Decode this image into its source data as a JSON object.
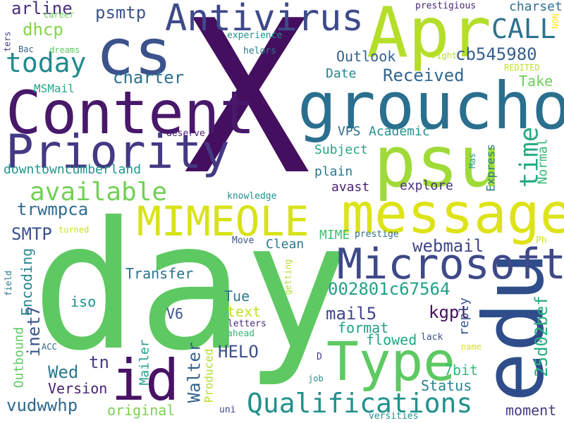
{
  "words": [
    {
      "text": "X",
      "color": "#440f5f",
      "vertical": false
    },
    {
      "text": "day",
      "color": "#5ec962",
      "vertical": false
    },
    {
      "text": "Apr",
      "color": "#b5de2b",
      "vertical": false
    },
    {
      "text": "edu",
      "color": "#2e4d8a",
      "vertical": true
    },
    {
      "text": "groucho",
      "color": "#2a6f8e",
      "vertical": false
    },
    {
      "text": "Content",
      "color": "#48186a",
      "vertical": false
    },
    {
      "text": "cs",
      "color": "#3b528b",
      "vertical": false
    },
    {
      "text": "psu",
      "color": "#a0da39",
      "vertical": false
    },
    {
      "text": "message",
      "color": "#dde318",
      "vertical": false
    },
    {
      "text": "Priority",
      "color": "#443983",
      "vertical": false
    },
    {
      "text": "Antivirus",
      "color": "#3e4a89",
      "vertical": false
    },
    {
      "text": "Microsoft",
      "color": "#3e4989",
      "vertical": false
    },
    {
      "text": "Type",
      "color": "#5ec962",
      "vertical": false
    },
    {
      "text": "id",
      "color": "#471365",
      "vertical": false
    },
    {
      "text": "MIMEOLE",
      "color": "#d8e219",
      "vertical": false
    },
    {
      "text": "Qualifications",
      "color": "#21918c",
      "vertical": false
    },
    {
      "text": "today",
      "color": "#23898e",
      "vertical": false
    },
    {
      "text": "available",
      "color": "#73d056",
      "vertical": false
    },
    {
      "text": "CALL",
      "color": "#2c728e",
      "vertical": false
    },
    {
      "text": "cb545980",
      "color": "#355f8d",
      "vertical": false
    },
    {
      "text": "charter",
      "color": "#2d708e",
      "vertical": false
    },
    {
      "text": "psmtp",
      "color": "#3a548c",
      "vertical": false
    },
    {
      "text": "time",
      "color": "#25ac82",
      "vertical": true
    },
    {
      "text": "arline",
      "color": "#472f7d",
      "vertical": false
    },
    {
      "text": "dhcp",
      "color": "#84d44b",
      "vertical": false
    },
    {
      "text": "trwmpca",
      "color": "#2f6b8e",
      "vertical": false
    },
    {
      "text": "downtowncumberland",
      "color": "#1f948c",
      "vertical": false
    },
    {
      "text": "Received",
      "color": "#32658e",
      "vertical": false
    },
    {
      "text": "Outlook",
      "color": "#34618d",
      "vertical": false
    },
    {
      "text": "Date",
      "color": "#24868e",
      "vertical": false
    },
    {
      "text": "Take",
      "color": "#6ccd5a",
      "vertical": false
    },
    {
      "text": "SMTP",
      "color": "#3a538b",
      "vertical": false
    },
    {
      "text": "webmail",
      "color": "#3f4788",
      "vertical": false
    },
    {
      "text": "002801c67564",
      "color": "#1fa187",
      "vertical": false
    },
    {
      "text": "25d02bef",
      "color": "#29af7f",
      "vertical": true
    },
    {
      "text": "kgpt",
      "color": "#470e61",
      "vertical": false
    },
    {
      "text": "mail5",
      "color": "#414487",
      "vertical": false
    },
    {
      "text": "Transfer",
      "color": "#2c738e",
      "vertical": false
    },
    {
      "text": "Encoding",
      "color": "#25858e",
      "vertical": true
    },
    {
      "text": "inet7",
      "color": "#39568c",
      "vertical": true
    },
    {
      "text": "Wed",
      "color": "#2a788e",
      "vertical": false
    },
    {
      "text": "tn",
      "color": "#433d84",
      "vertical": false
    },
    {
      "text": "Walter",
      "color": "#33638d",
      "vertical": true
    },
    {
      "text": "HELO",
      "color": "#3d4e8a",
      "vertical": false
    },
    {
      "text": "vudwwhp",
      "color": "#31688e",
      "vertical": false
    },
    {
      "text": "Version",
      "color": "#482374",
      "vertical": false
    },
    {
      "text": "Status",
      "color": "#26828e",
      "vertical": false
    },
    {
      "text": "7bit",
      "color": "#35b779",
      "vertical": false
    },
    {
      "text": "moment",
      "color": "#443b84",
      "vertical": false
    },
    {
      "text": "original",
      "color": "#7ad151",
      "vertical": false
    },
    {
      "text": "Produced",
      "color": "#b5de2b",
      "vertical": true
    },
    {
      "text": "Mailer",
      "color": "#1f9e89",
      "vertical": true
    },
    {
      "text": "Outbound",
      "color": "#5ec962",
      "vertical": true
    },
    {
      "text": "iso",
      "color": "#21918c",
      "vertical": false
    },
    {
      "text": "V6",
      "color": "#3b528b",
      "vertical": false
    },
    {
      "text": "Tue",
      "color": "#2a788e",
      "vertical": false
    },
    {
      "text": "text",
      "color": "#c2df23",
      "vertical": false
    },
    {
      "text": "format",
      "color": "#1fa088",
      "vertical": false
    },
    {
      "text": "flowed",
      "color": "#22a884",
      "vertical": false
    },
    {
      "text": "reply",
      "color": "#3a548c",
      "vertical": true
    },
    {
      "text": "Express",
      "color": "#2a788e",
      "vertical": true
    },
    {
      "text": "Normal",
      "color": "#35b779",
      "vertical": true
    },
    {
      "text": "Academic",
      "color": "#20928c",
      "vertical": false
    },
    {
      "text": "VPS",
      "color": "#2e6e8e",
      "vertical": false
    },
    {
      "text": "Subject",
      "color": "#22a884",
      "vertical": false
    },
    {
      "text": "plain",
      "color": "#29788e",
      "vertical": false
    },
    {
      "text": "avast",
      "color": "#481f70",
      "vertical": false
    },
    {
      "text": "explore",
      "color": "#46317e",
      "vertical": false
    },
    {
      "text": "MIME",
      "color": "#40bd72",
      "vertical": false
    },
    {
      "text": "Clean",
      "color": "#2a788e",
      "vertical": false
    },
    {
      "text": "MSMail",
      "color": "#22a884",
      "vertical": false
    },
    {
      "text": "charset",
      "color": "#2d708e",
      "vertical": false
    },
    {
      "text": "prestigious",
      "color": "#482677",
      "vertical": false
    },
    {
      "text": "experience",
      "color": "#21918c",
      "vertical": false
    },
    {
      "text": "helors",
      "color": "#2a788e",
      "vertical": false
    },
    {
      "text": "career",
      "color": "#6ece58",
      "vertical": false
    },
    {
      "text": "dreams",
      "color": "#5ec962",
      "vertical": false
    },
    {
      "text": "Bac",
      "color": "#355f8d",
      "vertical": false
    },
    {
      "text": "ters",
      "color": "#414487",
      "vertical": true
    },
    {
      "text": "NON",
      "color": "#fde725",
      "vertical": true
    },
    {
      "text": "right",
      "color": "#b5de2b",
      "vertical": false
    },
    {
      "text": "REDITED",
      "color": "#bddf26",
      "vertical": false
    },
    {
      "text": "deserve",
      "color": "#482173",
      "vertical": false
    },
    {
      "text": "Mas",
      "color": "#1f9e89",
      "vertical": true
    },
    {
      "text": "knowledge",
      "color": "#21918c",
      "vertical": false
    },
    {
      "text": "turned",
      "color": "#c8e020",
      "vertical": false
    },
    {
      "text": "prestige",
      "color": "#2d708e",
      "vertical": false
    },
    {
      "text": "Move",
      "color": "#3b528b",
      "vertical": false
    },
    {
      "text": "Ph",
      "color": "#d0e11c",
      "vertical": false
    },
    {
      "text": "field",
      "color": "#2a788e",
      "vertical": true
    },
    {
      "text": "getting",
      "color": "#b5de2b",
      "vertical": true
    },
    {
      "text": "letters",
      "color": "#472c7a",
      "vertical": false
    },
    {
      "text": "ahead",
      "color": "#35b779",
      "vertical": false
    },
    {
      "text": "lack",
      "color": "#3b528b",
      "vertical": false
    },
    {
      "text": "name",
      "color": "#d8e219",
      "vertical": false
    },
    {
      "text": "ACC",
      "color": "#31688e",
      "vertical": false
    },
    {
      "text": "D",
      "color": "#443a83",
      "vertical": false
    },
    {
      "text": "job",
      "color": "#21918c",
      "vertical": false
    },
    {
      "text": "uni",
      "color": "#414487",
      "vertical": false
    },
    {
      "text": "versities",
      "color": "#21918c",
      "vertical": false
    }
  ]
}
